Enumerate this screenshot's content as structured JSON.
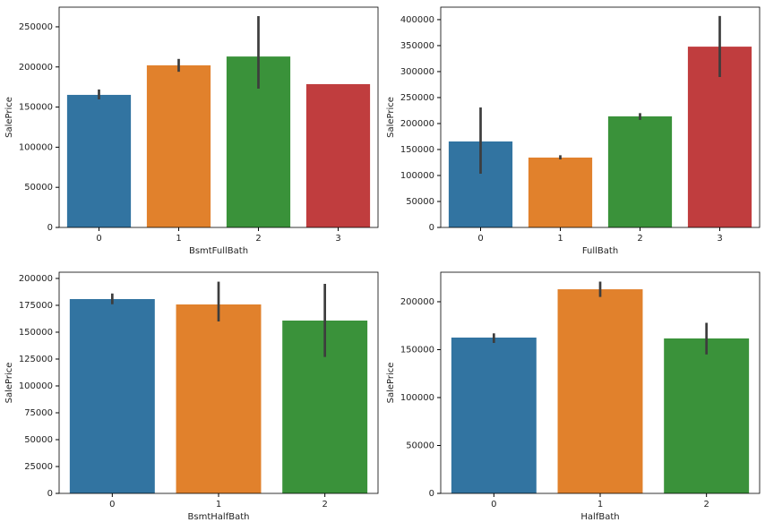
{
  "chart_data": [
    {
      "type": "bar",
      "xlabel": "BsmtFullBath",
      "ylabel": "SalePrice",
      "categories": [
        "0",
        "1",
        "2",
        "3"
      ],
      "values": [
        165200,
        202000,
        213000,
        178600
      ],
      "errors": [
        [
          159600,
          171900
        ],
        [
          194000,
          210000
        ],
        [
          173000,
          263400
        ],
        null
      ],
      "colors": [
        "#3274a1",
        "#e1812c",
        "#3a923a",
        "#c03d3e"
      ],
      "ylim": [
        0,
        274500
      ],
      "yticks": [
        0,
        50000,
        100000,
        150000,
        200000,
        250000
      ]
    },
    {
      "type": "bar",
      "xlabel": "FullBath",
      "ylabel": "SalePrice",
      "categories": [
        "0",
        "1",
        "2",
        "3"
      ],
      "values": [
        165500,
        134500,
        213800,
        348000
      ],
      "errors": [
        [
          103400,
          231000
        ],
        [
          131000,
          139000
        ],
        [
          207000,
          220000
        ],
        [
          289600,
          407000
        ]
      ],
      "colors": [
        "#3274a1",
        "#e1812c",
        "#3a923a",
        "#c03d3e"
      ],
      "ylim": [
        0,
        424000
      ],
      "yticks": [
        0,
        50000,
        100000,
        150000,
        200000,
        250000,
        300000,
        350000,
        400000
      ]
    },
    {
      "type": "bar",
      "xlabel": "BsmtHalfBath",
      "ylabel": "SalePrice",
      "categories": [
        "0",
        "1",
        "2"
      ],
      "values": [
        180800,
        175800,
        160800
      ],
      "errors": [
        [
          176000,
          186000
        ],
        [
          160000,
          197000
        ],
        [
          127000,
          195000
        ]
      ],
      "colors": [
        "#3274a1",
        "#e1812c",
        "#3a923a"
      ],
      "ylim": [
        0,
        205800
      ],
      "yticks": [
        0,
        25000,
        50000,
        75000,
        100000,
        125000,
        150000,
        175000,
        200000
      ]
    },
    {
      "type": "bar",
      "xlabel": "HalfBath",
      "ylabel": "SalePrice",
      "categories": [
        "0",
        "1",
        "2"
      ],
      "values": [
        162600,
        213000,
        161700
      ],
      "errors": [
        [
          157000,
          167000
        ],
        [
          205000,
          221000
        ],
        [
          145000,
          178000
        ]
      ],
      "colors": [
        "#3274a1",
        "#e1812c",
        "#3a923a"
      ],
      "ylim": [
        0,
        230800
      ],
      "yticks": [
        0,
        50000,
        100000,
        150000,
        200000
      ]
    }
  ]
}
